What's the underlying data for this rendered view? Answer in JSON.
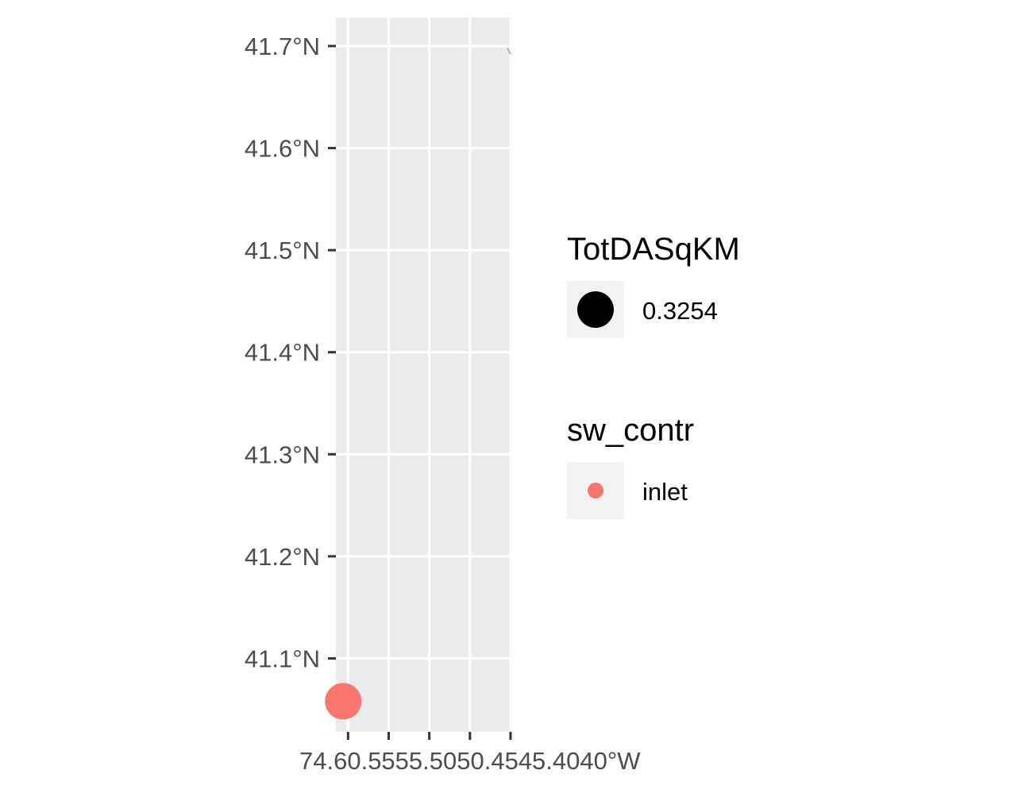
{
  "chart_data": {
    "type": "scatter",
    "kind": "map",
    "title": "",
    "xlabel": "",
    "ylabel": "",
    "xlim": [
      -74.615,
      -74.398
    ],
    "ylim": [
      41.028,
      41.728
    ],
    "grid": true,
    "panel_background": "#ebebeb",
    "grid_color": "#ffffff",
    "y_ticks": [
      {
        "value": 41.1,
        "label": "41.1°N"
      },
      {
        "value": 41.2,
        "label": "41.2°N"
      },
      {
        "value": 41.3,
        "label": "41.3°N"
      },
      {
        "value": 41.4,
        "label": "41.4°N"
      },
      {
        "value": 41.5,
        "label": "41.5°N"
      },
      {
        "value": 41.6,
        "label": "41.6°N"
      },
      {
        "value": 41.7,
        "label": "41.7°N"
      }
    ],
    "x_ticks": [
      {
        "value": -74.6,
        "label": "74.60°W"
      },
      {
        "value": -74.55,
        "label": "74.55°W"
      },
      {
        "value": -74.5,
        "label": "74.50°W"
      },
      {
        "value": -74.45,
        "label": "74.45°W"
      },
      {
        "value": -74.4,
        "label": "74.40°W"
      }
    ],
    "x_tick_label_overlay": "74.​60.55​55.50​50.45​45.40​40°W",
    "points": [
      {
        "lon": -74.606,
        "lat": 41.058,
        "TotDASqKM": 0.3254,
        "sw_contr": "inlet",
        "color": "#f8766d"
      }
    ],
    "features": [
      {
        "kind": "tiny-grey-streak",
        "lon": -74.402,
        "lat": 41.695,
        "color": "#b3b3b3"
      }
    ],
    "legends": [
      {
        "title": "TotDASqKM",
        "key": "size",
        "entries": [
          {
            "label": "0.3254",
            "color": "#000000",
            "shape": "circle-large"
          }
        ]
      },
      {
        "title": "sw_contr",
        "key": "color",
        "entries": [
          {
            "label": "inlet",
            "color": "#f8766d",
            "shape": "circle-small"
          }
        ]
      }
    ]
  }
}
